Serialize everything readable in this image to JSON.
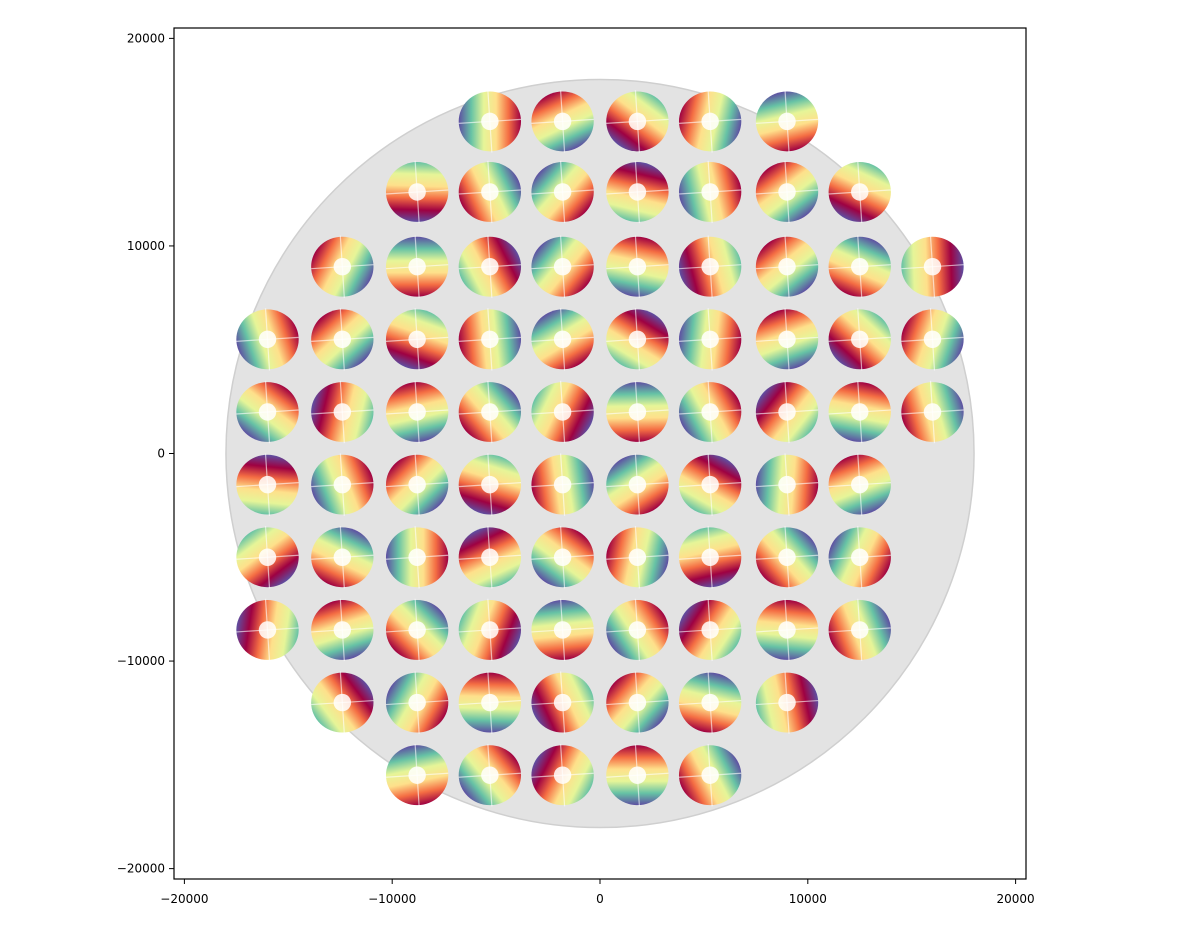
{
  "chart_data": {
    "type": "heatmap",
    "title": "",
    "xlabel": "",
    "ylabel": "",
    "xlim": [
      -20500,
      20500
    ],
    "ylim": [
      -20500,
      20500
    ],
    "xticks": [
      -20000,
      -10000,
      0,
      10000,
      20000
    ],
    "yticks": [
      -20000,
      -10000,
      0,
      10000,
      20000
    ],
    "xtick_labels": [
      "−20000",
      "−10000",
      "0",
      "10000",
      "20000"
    ],
    "ytick_labels": [
      "−20000",
      "−10000",
      "0",
      "10000",
      "20000"
    ],
    "aspect": "equal",
    "grid": false,
    "colormap": "Spectral_r",
    "colormap_stops": [
      "#5e4fa2",
      "#66c2a5",
      "#e6f598",
      "#fee08b",
      "#f46d43",
      "#9e0142"
    ],
    "pupil_circle": {
      "center": [
        0,
        0
      ],
      "radius": 18000,
      "color": "#e3e3e3"
    },
    "map_radius": 1500,
    "map_hole_radius": 420,
    "rows": [
      {
        "y": 16000,
        "x": [
          -5300,
          -1800,
          1800,
          5300,
          9000
        ]
      },
      {
        "y": 12600,
        "x": [
          -8800,
          -5300,
          -1800,
          1800,
          5300,
          9000,
          12500
        ]
      },
      {
        "y": 9000,
        "x": [
          -12400,
          -8800,
          -5300,
          -1800,
          1800,
          5300,
          9000,
          12500,
          16000
        ]
      },
      {
        "y": 5500,
        "x": [
          -16000,
          -12400,
          -8800,
          -5300,
          -1800,
          1800,
          5300,
          9000,
          12500,
          16000
        ]
      },
      {
        "y": 2000,
        "x": [
          -16000,
          -12400,
          -8800,
          -5300,
          -1800,
          1800,
          5300,
          9000,
          12500,
          16000
        ]
      },
      {
        "y": -1500,
        "x": [
          -16000,
          -12400,
          -8800,
          -5300,
          -1800,
          1800,
          5300,
          9000,
          12500
        ]
      },
      {
        "y": -5000,
        "x": [
          -16000,
          -12400,
          -8800,
          -5300,
          -1800,
          1800,
          5300,
          9000,
          12500
        ]
      },
      {
        "y": -8500,
        "x": [
          -16000,
          -12400,
          -8800,
          -5300,
          -1800,
          1800,
          5300,
          9000,
          12500
        ]
      },
      {
        "y": -12000,
        "x": [
          -12400,
          -8800,
          -5300,
          -1800,
          1800,
          5300,
          9000
        ]
      },
      {
        "y": -15500,
        "x": [
          -8800,
          -5300,
          -1800,
          1800,
          5300
        ]
      }
    ]
  }
}
